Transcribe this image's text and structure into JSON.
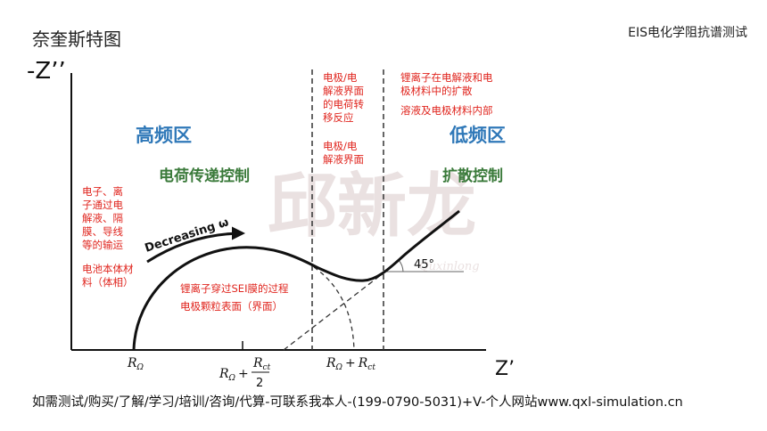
{
  "header": {
    "title": "奈奎斯特图",
    "subtitle": "EIS电化学阻抗谱测试"
  },
  "axes": {
    "y_label": "-Z’’",
    "x_label": "Z’",
    "ticks": {
      "r_omega_symbol": "R",
      "omega_sub": "Ω",
      "plus": "+",
      "rct_symbol": "R",
      "ct_sub": "ct",
      "half_den": "2"
    }
  },
  "regions": {
    "high_freq": "高频区",
    "low_freq": "低频区",
    "charge_transfer": "电荷传递控制",
    "diffusion": "扩散控制"
  },
  "annotations": {
    "electron_ion": [
      "电子、离",
      "子通过电",
      "解液、隔",
      "膜、导线",
      "等的输运"
    ],
    "battery_body": [
      "电池本体材",
      "料（体相）"
    ],
    "li_sei": [
      "锂离子穿过SEI膜的过程",
      "电极颗粒表面（界面）"
    ],
    "interface_charge": [
      "电极/电",
      "解液界面",
      "的电荷转",
      "移反应"
    ],
    "interface": [
      "电极/电",
      "解液界面"
    ],
    "li_diffusion": [
      "锂离子在电解液和电",
      "极材料中的扩散"
    ],
    "li_diffusion2": [
      "溶液及电极材料内部"
    ],
    "angle": "45°",
    "decreasing": "Decreasing ω"
  },
  "watermark": {
    "text": "邱新龙",
    "latin": "Quxinlong"
  },
  "footer": {
    "text": "如需测试/购买/了解/学习/培训/咨询/代算-可联系我本人-(199-0790-5031)+V-个人网站www.qxl-simulation.cn"
  },
  "colors": {
    "annotation": "#e0261f",
    "region": "#2f78b8",
    "control": "#3a7a3a"
  }
}
